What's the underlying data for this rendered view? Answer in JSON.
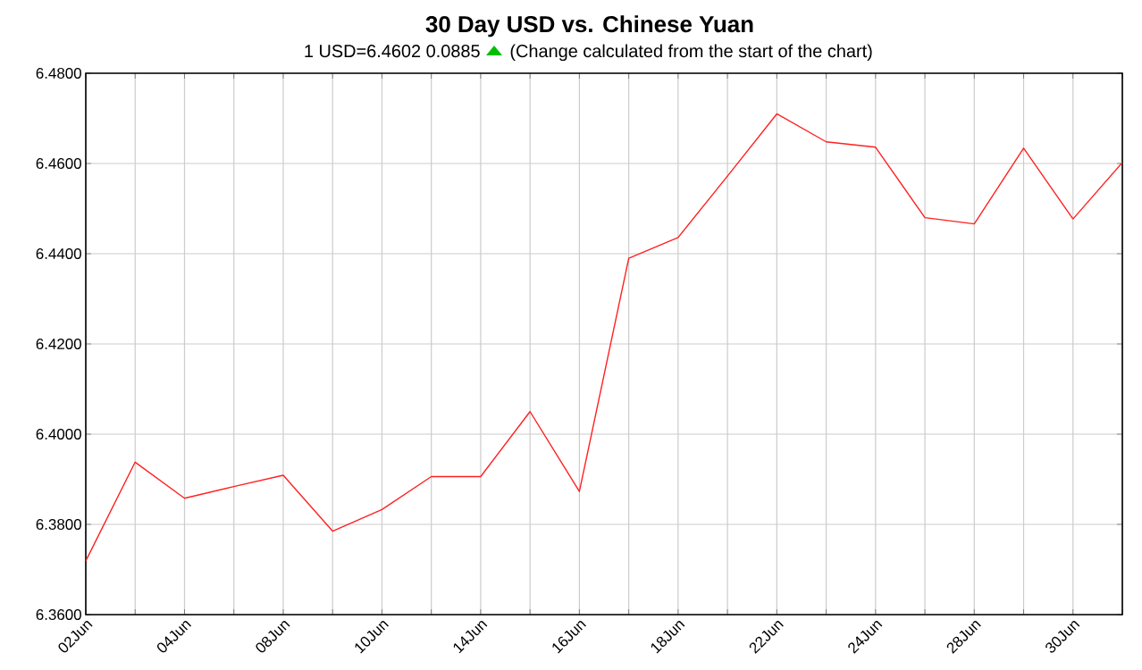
{
  "chart_data": {
    "type": "line",
    "title": "30 Day USD vs. Chinese Yuan",
    "subtitle": "1 USD=6.4602  0.0885",
    "annotations": [
      "(Change calculated from the start of the chart)"
    ],
    "categories": [
      "02Jun",
      null,
      "04Jun",
      null,
      "08Jun",
      null,
      "10Jun",
      null,
      "14Jun",
      null,
      "16Jun",
      null,
      "18Jun",
      null,
      "22Jun",
      null,
      "24Jun",
      null,
      "28Jun",
      null,
      "30Jun",
      null
    ],
    "series": [
      {
        "color": "#ff2020",
        "values": [
          6.3719,
          6.3938,
          6.3858,
          6.3884,
          6.3909,
          6.3785,
          6.3833,
          6.3906,
          6.3906,
          6.405,
          6.3873,
          6.439,
          6.4436,
          6.4572,
          6.471,
          6.4648,
          6.4636,
          6.448,
          6.4466,
          6.4634,
          6.4477,
          6.4602
        ]
      }
    ],
    "ylim": [
      6.36,
      6.48
    ],
    "yticks": [
      {
        "value": 6.36,
        "label": "6.3600"
      },
      {
        "value": 6.38,
        "label": "6.3800"
      },
      {
        "value": 6.4,
        "label": "6.4000"
      },
      {
        "value": 6.42,
        "label": "6.4200"
      },
      {
        "value": 6.44,
        "label": "6.4400"
      },
      {
        "value": 6.46,
        "label": "6.4600"
      },
      {
        "value": 6.48,
        "label": "6.4800"
      }
    ],
    "grid": true,
    "marker": "none",
    "line_style": "solid"
  }
}
